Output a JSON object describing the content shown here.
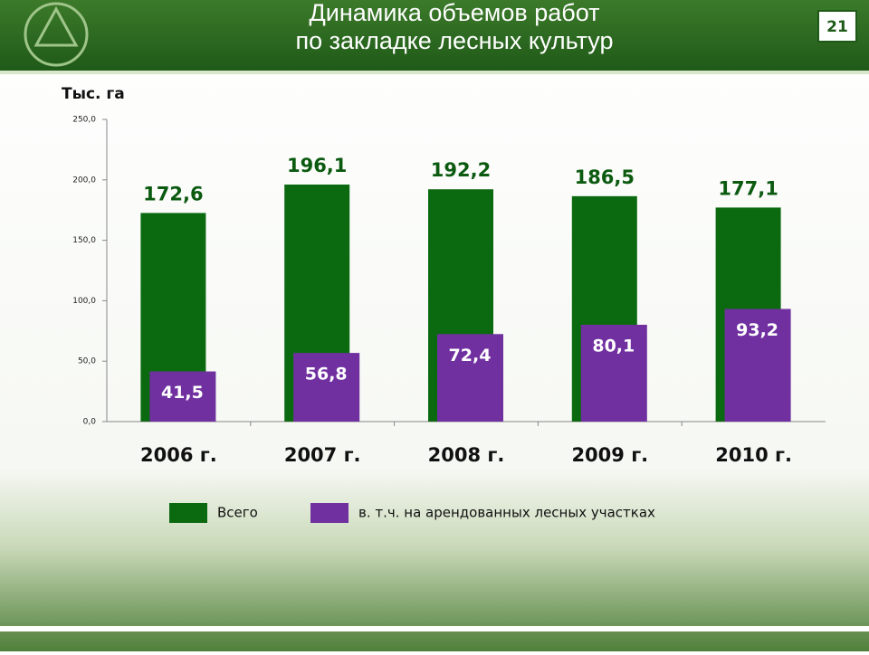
{
  "slide": {
    "title_lines": [
      "Динамика объемов работ",
      "по закладке лесных культур"
    ],
    "page_number": 21
  },
  "chart_data": {
    "type": "bar",
    "y_label": "Тыс. га",
    "categories": [
      "2006 г.",
      "2007 г.",
      "2008 г.",
      "2009 г.",
      "2010 г."
    ],
    "series": [
      {
        "name": "Всего",
        "color": "#0b6a10",
        "values": [
          172.6,
          196.1,
          192.2,
          186.5,
          177.1
        ],
        "value_labels": [
          "172,6",
          "196,1",
          "192,2",
          "186,5",
          "177,1"
        ]
      },
      {
        "name": "в. т.ч. на арендованных лесных участках",
        "color": "#7030a0",
        "values": [
          41.5,
          56.8,
          72.4,
          80.1,
          93.2
        ],
        "value_labels": [
          "41,5",
          "56,8",
          "72,4",
          "80,1",
          "93,2"
        ]
      }
    ],
    "ylim": [
      0,
      250
    ],
    "yticks": [
      {
        "value": 0,
        "label": "0,0"
      },
      {
        "value": 50,
        "label": "50,0"
      },
      {
        "value": 100,
        "label": "100,0"
      },
      {
        "value": 150,
        "label": "150,0"
      },
      {
        "value": 200,
        "label": "200,0"
      },
      {
        "value": 250,
        "label": "250,0"
      }
    ]
  }
}
